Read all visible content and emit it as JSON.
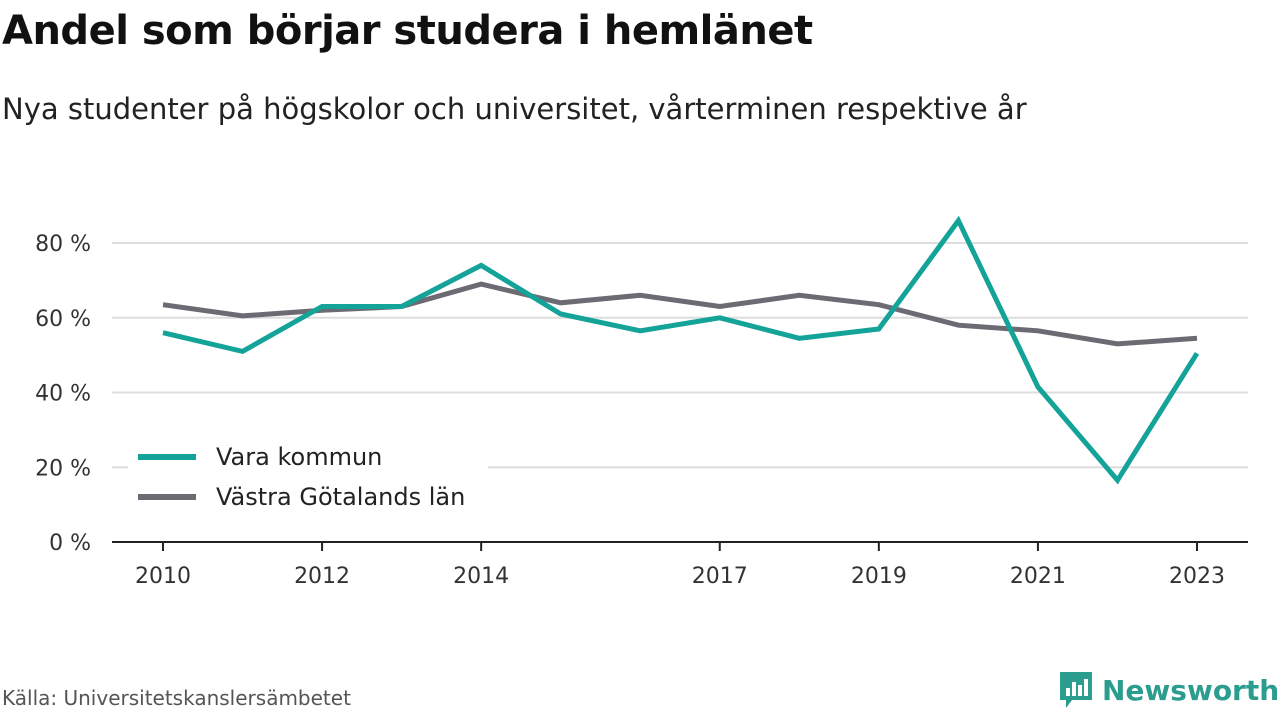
{
  "title": "Andel som börjar studera i hemlänet",
  "subtitle": "Nya studenter på högskolor och universitet, vårterminen respektive år",
  "source": "Källa: Universitetskanslersämbetet",
  "brand": "Newsworthy",
  "colors": {
    "vara": "#14a398",
    "vgl": "#6c6a72",
    "grid": "#dddddd",
    "axis": "#222222",
    "brand": "#2a9d8f"
  },
  "chart_data": {
    "type": "line",
    "x": [
      2010,
      2011,
      2012,
      2013,
      2014,
      2015,
      2016,
      2017,
      2018,
      2019,
      2020,
      2021,
      2022,
      2023
    ],
    "x_ticks": [
      2010,
      2012,
      2014,
      2017,
      2019,
      2021,
      2023
    ],
    "y_ticks": [
      {
        "value": 0,
        "label": "0 %"
      },
      {
        "value": 20,
        "label": "20 %"
      },
      {
        "value": 40,
        "label": "40 %"
      },
      {
        "value": 60,
        "label": "60 %"
      },
      {
        "value": 80,
        "label": "80 %"
      }
    ],
    "ylim": [
      0,
      90
    ],
    "grid": true,
    "legend_position": "bottom-left",
    "series": [
      {
        "name": "Vara kommun",
        "color": "#14a398",
        "values": [
          56,
          51,
          63,
          63,
          74,
          61,
          56.5,
          60,
          54.5,
          57,
          86,
          41.5,
          16.5,
          50.5
        ]
      },
      {
        "name": "Västra Götalands län",
        "color": "#6c6a72",
        "values": [
          63.5,
          60.5,
          62,
          63,
          69,
          64,
          66,
          63,
          66,
          63.5,
          58,
          56.5,
          53,
          54.5
        ]
      }
    ]
  }
}
